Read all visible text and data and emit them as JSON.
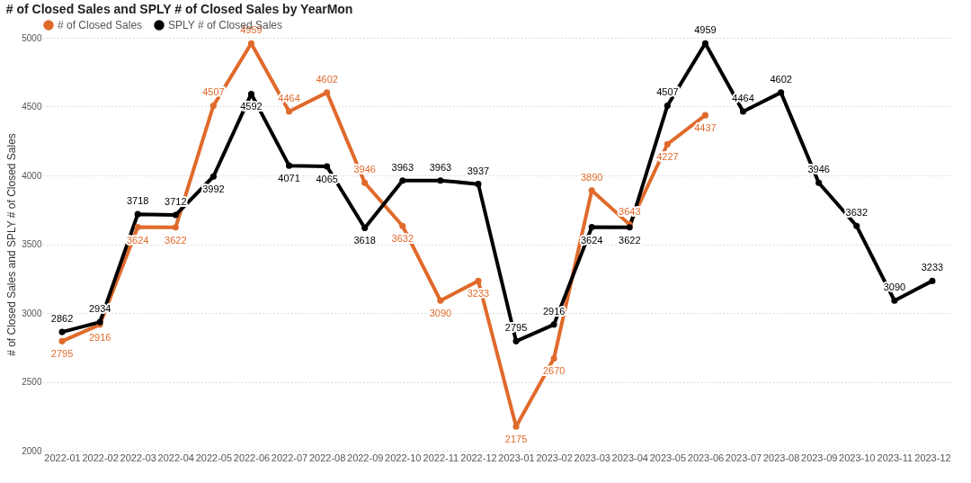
{
  "chart_data": {
    "type": "line",
    "title": "# of Closed Sales and SPLY # of Closed Sales by YearMon",
    "ylabel": "# of Closed Sales and SPLY # of Closed Sales",
    "categories": [
      "2022-01",
      "2022-02",
      "2022-03",
      "2022-04",
      "2022-05",
      "2022-06",
      "2022-07",
      "2022-08",
      "2022-09",
      "2022-10",
      "2022-11",
      "2022-12",
      "2023-01",
      "2023-02",
      "2023-03",
      "2023-04",
      "2023-05",
      "2023-06",
      "2023-07",
      "2023-08",
      "2023-09",
      "2023-10",
      "2023-11",
      "2023-12"
    ],
    "series": [
      {
        "name": "# of Closed Sales",
        "color": "#e06a2b",
        "values": [
          2795,
          2916,
          3624,
          3622,
          4507,
          4959,
          4464,
          4602,
          3946,
          3632,
          3090,
          3233,
          2175,
          2670,
          3890,
          3643,
          4227,
          4437,
          null,
          null,
          null,
          null,
          null,
          null
        ]
      },
      {
        "name": "SPLY # of Closed Sales",
        "color": "#000000",
        "values": [
          2862,
          2934,
          3718,
          3712,
          3992,
          4592,
          4071,
          4065,
          3618,
          3963,
          3963,
          3937,
          2795,
          2916,
          3624,
          3622,
          4507,
          4959,
          4464,
          4602,
          3946,
          3632,
          3090,
          3233
        ]
      }
    ],
    "ylim": [
      2000,
      5000
    ],
    "yticks": [
      2000,
      2500,
      3000,
      3500,
      4000,
      4500,
      5000
    ],
    "grid": "y",
    "legend": "top left",
    "marker": "circle",
    "line_style": "solid",
    "data_labels": true
  }
}
